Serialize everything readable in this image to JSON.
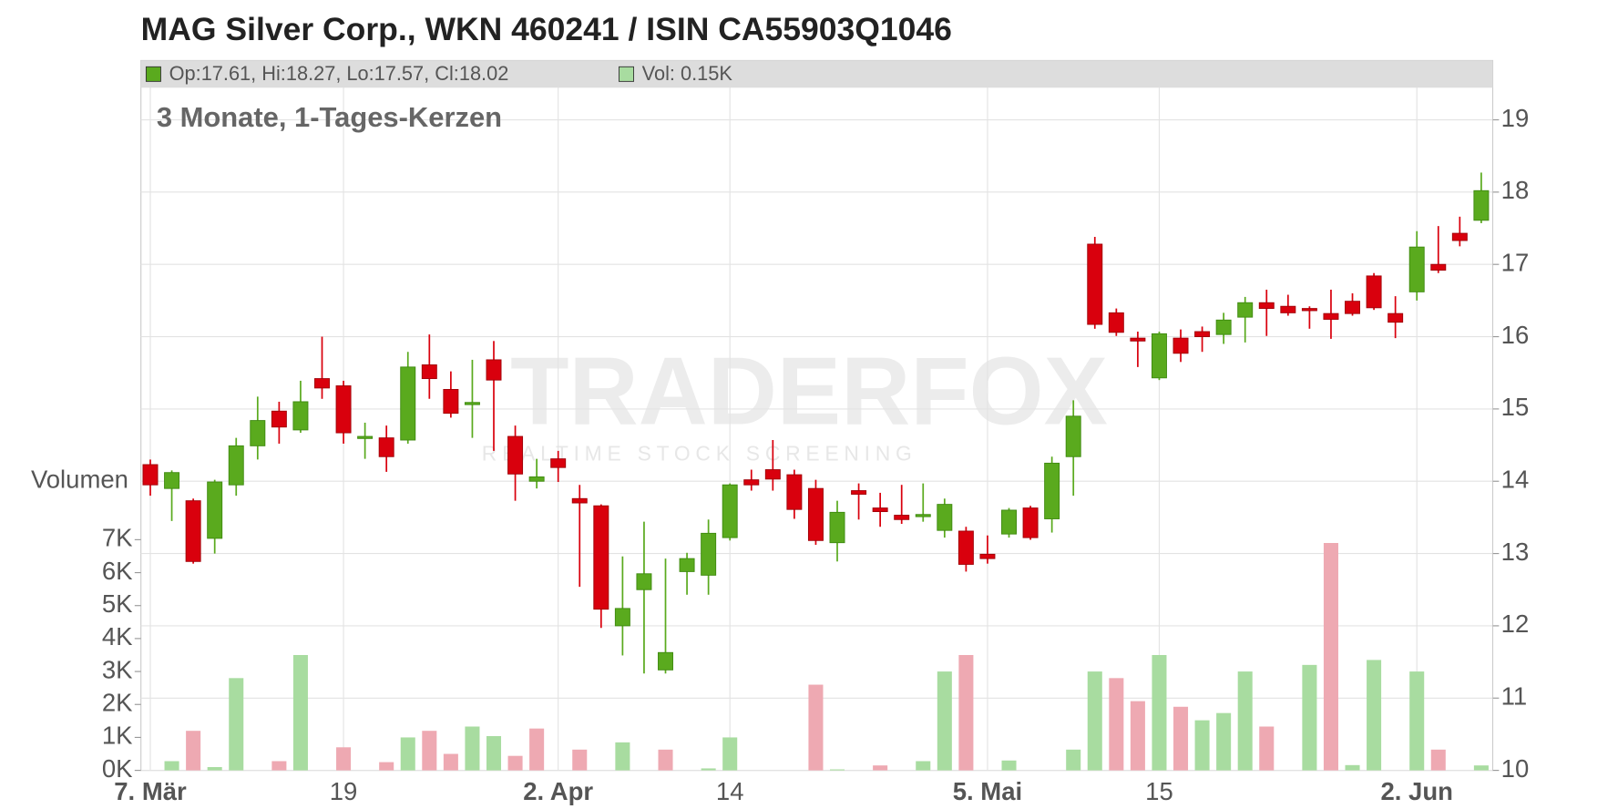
{
  "chart_data": {
    "type": "candlestick",
    "title": "MAG Silver Corp., WKN 460241 / ISIN CA55903Q1046",
    "subtitle": "3 Monate, 1-Tages-Kerzen",
    "legend": {
      "ohlc": "Op:17.61, Hi:18.27, Lo:17.57, Cl:18.02",
      "volume": "Vol: 0.15K"
    },
    "watermark": {
      "brand": "TRADERFOX",
      "tagline": "REALTIME STOCK SCREENING"
    },
    "volume_label": "Volumen",
    "categories": [
      "7. Mär",
      null,
      null,
      null,
      null,
      null,
      null,
      null,
      null,
      "19",
      null,
      null,
      null,
      null,
      null,
      null,
      null,
      null,
      null,
      "2. Apr",
      null,
      null,
      null,
      null,
      null,
      null,
      null,
      "14",
      null,
      null,
      null,
      null,
      null,
      null,
      null,
      null,
      null,
      null,
      null,
      "5. Mai",
      null,
      null,
      null,
      null,
      null,
      null,
      null,
      "15",
      null,
      null,
      null,
      null,
      null,
      null,
      null,
      null,
      null,
      null,
      null,
      "2. Jun",
      null,
      null,
      null
    ],
    "open": [
      14.23,
      13.9,
      13.73,
      13.21,
      13.95,
      14.49,
      14.97,
      14.71,
      15.42,
      15.32,
      14.6,
      14.6,
      14.57,
      15.61,
      15.27,
      15.06,
      15.68,
      14.62,
      14.0,
      14.31,
      13.76,
      13.66,
      12.0,
      12.5,
      11.39,
      12.75,
      12.7,
      13.22,
      14.02,
      14.16,
      14.09,
      13.9,
      13.15,
      13.87,
      13.63,
      13.53,
      13.51,
      13.32,
      13.31,
      12.99,
      13.27,
      13.63,
      13.48,
      14.34,
      17.28,
      16.33,
      15.98,
      15.43,
      15.98,
      16.07,
      16.03,
      16.27,
      16.47,
      16.42,
      16.39,
      16.32,
      16.49,
      16.84,
      16.32,
      16.62,
      17.0,
      17.43,
      17.61
    ],
    "high": [
      14.3,
      14.15,
      13.76,
      14.02,
      14.6,
      15.17,
      15.1,
      15.39,
      16.0,
      15.39,
      14.81,
      14.77,
      15.79,
      16.03,
      15.52,
      15.68,
      15.94,
      14.77,
      14.31,
      14.42,
      13.95,
      13.68,
      12.96,
      13.44,
      12.93,
      13.01,
      13.47,
      13.97,
      14.16,
      14.57,
      14.16,
      14.02,
      13.73,
      13.97,
      13.84,
      13.95,
      13.97,
      13.76,
      13.37,
      13.25,
      13.63,
      13.66,
      14.34,
      15.12,
      17.38,
      16.39,
      16.07,
      16.07,
      16.1,
      16.14,
      16.33,
      16.55,
      16.65,
      16.58,
      16.42,
      16.65,
      16.6,
      16.88,
      16.56,
      17.46,
      17.53,
      17.66,
      18.27
    ],
    "low": [
      13.8,
      13.45,
      12.86,
      13.0,
      13.8,
      14.3,
      14.52,
      14.67,
      15.14,
      14.52,
      14.31,
      14.13,
      14.52,
      15.14,
      14.88,
      14.6,
      14.42,
      13.73,
      13.9,
      13.99,
      12.54,
      11.97,
      11.59,
      11.34,
      11.34,
      12.43,
      12.43,
      13.18,
      13.87,
      13.87,
      13.48,
      13.12,
      12.89,
      13.47,
      13.37,
      13.41,
      13.44,
      13.22,
      12.75,
      12.86,
      13.22,
      13.19,
      13.29,
      13.8,
      16.11,
      16.01,
      15.58,
      15.4,
      15.65,
      15.79,
      15.9,
      15.92,
      16.01,
      16.29,
      16.11,
      15.97,
      16.29,
      16.37,
      15.98,
      16.5,
      16.88,
      17.25,
      17.57
    ],
    "close": [
      13.95,
      14.12,
      12.89,
      13.99,
      14.49,
      14.84,
      14.75,
      15.1,
      15.29,
      14.67,
      14.62,
      14.34,
      15.58,
      15.42,
      14.94,
      15.09,
      15.4,
      14.1,
      14.06,
      14.19,
      13.7,
      12.23,
      12.24,
      12.72,
      11.63,
      12.93,
      13.28,
      13.95,
      13.95,
      14.03,
      13.61,
      13.18,
      13.57,
      13.82,
      13.58,
      13.47,
      13.54,
      13.68,
      12.85,
      12.93,
      13.6,
      13.22,
      14.25,
      14.9,
      16.17,
      16.06,
      15.94,
      16.04,
      15.77,
      16.0,
      16.23,
      16.47,
      16.39,
      16.33,
      16.36,
      16.24,
      16.32,
      16.4,
      16.2,
      17.24,
      16.92,
      17.33,
      18.02
    ],
    "volume": [
      0,
      0.28,
      1.2,
      0.1,
      2.8,
      0,
      0.28,
      3.5,
      0,
      0.7,
      0,
      0.25,
      1.0,
      1.2,
      0.5,
      1.33,
      1.04,
      0.44,
      1.27,
      0,
      0.63,
      0,
      0.85,
      0,
      0.63,
      0,
      0.06,
      1.0,
      0,
      0,
      0,
      2.6,
      0.03,
      0,
      0.15,
      0,
      0.28,
      3.0,
      3.5,
      0,
      0.3,
      0,
      0,
      0.63,
      3.0,
      2.8,
      2.1,
      3.5,
      1.93,
      1.52,
      1.74,
      3.0,
      1.33,
      0,
      3.2,
      6.9,
      0.16,
      3.35,
      0,
      3.0,
      0.63,
      0,
      0.15
    ],
    "colors": {
      "up": "#5aaa1e",
      "down": "#d9000d",
      "volume_up": "#a8dca0",
      "volume_down": "#eea9b2"
    },
    "ylim": [
      10,
      19.82
    ],
    "yticks": [
      10,
      11,
      12,
      13,
      14,
      15,
      16,
      17,
      18,
      19
    ],
    "volume_ylim": [
      0,
      7
    ],
    "volume_yticks": [
      {
        "value": 0,
        "label": "0K"
      },
      {
        "value": 1,
        "label": "1K"
      },
      {
        "value": 2,
        "label": "2K"
      },
      {
        "value": 3,
        "label": "3K"
      },
      {
        "value": 4,
        "label": "4K"
      },
      {
        "value": 5,
        "label": "5K"
      },
      {
        "value": 6,
        "label": "6K"
      },
      {
        "value": 7,
        "label": "7K"
      }
    ],
    "grid": true
  }
}
